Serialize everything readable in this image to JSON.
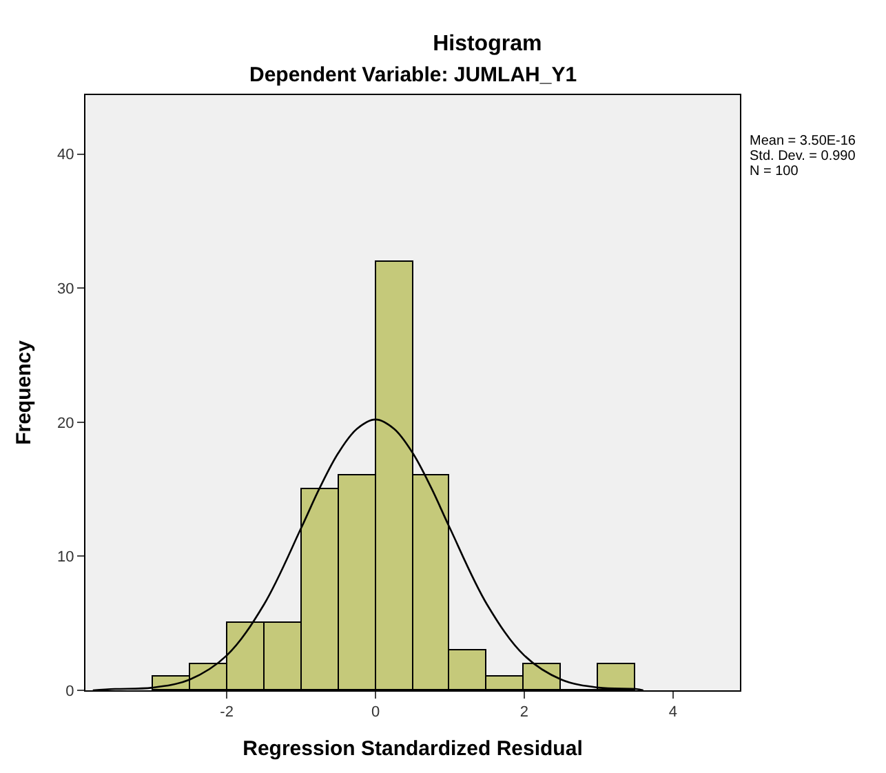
{
  "chart_data": {
    "type": "histogram",
    "title": "Histogram",
    "subtitle": "Dependent Variable: JUMLAH_Y1",
    "xlabel": "Regression Standardized Residual",
    "ylabel": "Frequency",
    "bins": [
      -3,
      -2.5,
      -2,
      -1.5,
      -1,
      -0.5,
      0,
      0.5,
      1,
      1.5,
      2,
      2.5,
      3,
      3.5
    ],
    "values": [
      1,
      2,
      5,
      5,
      15,
      16,
      32,
      16,
      3,
      1,
      2,
      0,
      2
    ],
    "color": "#c5c97a",
    "series": [
      {
        "type": "line",
        "color": "#000000",
        "x": [
          -3.8,
          -3.5,
          -3,
          -2.5,
          -2,
          -1.5,
          -1,
          -0.75,
          -0.5,
          -0.25,
          0,
          0.25,
          0.5,
          0.75,
          1,
          1.5,
          2,
          2.5,
          3,
          3.5,
          3.6
        ],
        "values": [
          0,
          0.1,
          0.2,
          0.8,
          2.6,
          6.4,
          12.1,
          15.1,
          17.7,
          19.5,
          20.2,
          19.5,
          17.7,
          15.1,
          12.1,
          6.4,
          2.6,
          0.8,
          0.2,
          0.1,
          0
        ]
      }
    ],
    "xlim": [
      -3.9,
      4.9
    ],
    "ylim": [
      0,
      44.4
    ],
    "xticks": [
      -2,
      0,
      2,
      4
    ],
    "yticks": [
      0,
      10,
      20,
      30,
      40
    ],
    "grid": false,
    "annotations": [
      "Mean = 3.50E-16",
      "Std. Dev. = 0.990",
      "N = 100"
    ]
  }
}
